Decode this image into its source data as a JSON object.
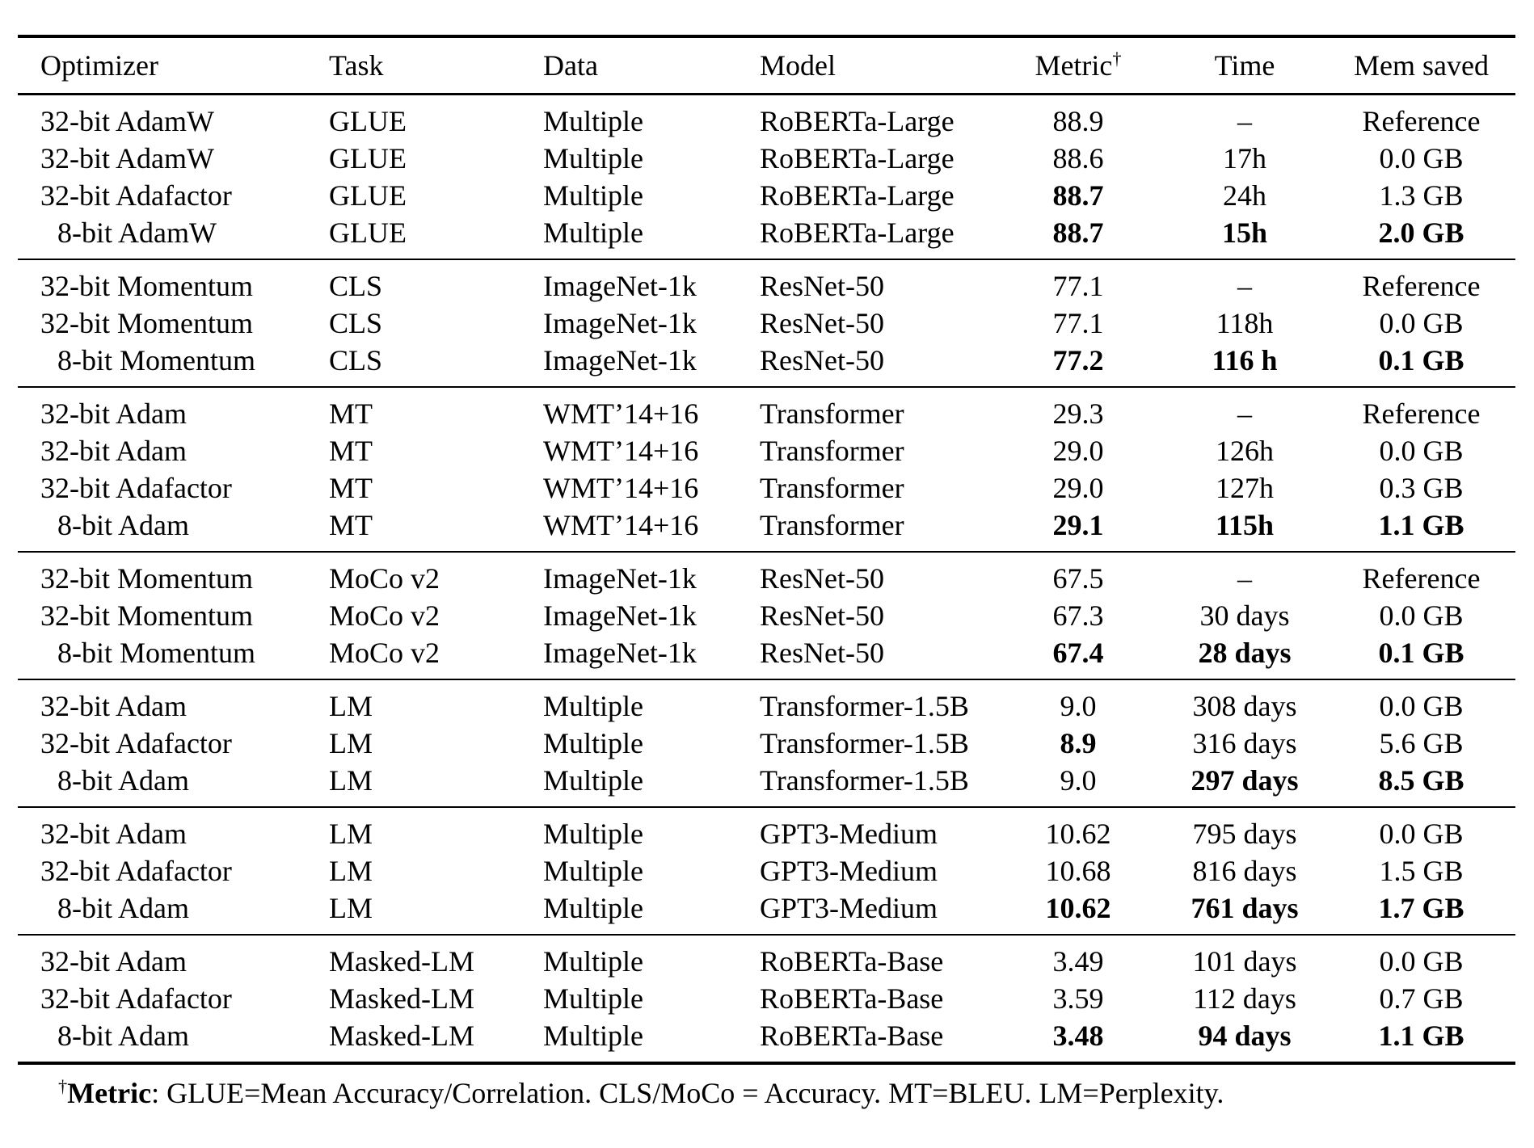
{
  "table": {
    "headers": [
      {
        "t": "Optimizer"
      },
      {
        "t": "Task"
      },
      {
        "t": "Data"
      },
      {
        "t": "Model"
      },
      {
        "t": "Metric",
        "sup": "†"
      },
      {
        "t": "Time"
      },
      {
        "t": "Mem saved"
      }
    ],
    "groups": [
      [
        [
          {
            "t": "32-bit AdamW"
          },
          {
            "t": "GLUE"
          },
          {
            "t": "Multiple"
          },
          {
            "t": "RoBERTa-Large"
          },
          {
            "t": "88.9"
          },
          {
            "t": "–"
          },
          {
            "t": "Reference"
          }
        ],
        [
          {
            "t": "32-bit AdamW"
          },
          {
            "t": "GLUE"
          },
          {
            "t": "Multiple"
          },
          {
            "t": "RoBERTa-Large"
          },
          {
            "t": "88.6"
          },
          {
            "t": "17h"
          },
          {
            "t": "0.0 GB"
          }
        ],
        [
          {
            "t": "32-bit Adafactor"
          },
          {
            "t": "GLUE"
          },
          {
            "t": "Multiple"
          },
          {
            "t": "RoBERTa-Large"
          },
          {
            "t": "88.7",
            "b": true
          },
          {
            "t": "24h"
          },
          {
            "t": "1.3 GB"
          }
        ],
        [
          {
            "t": "8-bit AdamW"
          },
          {
            "t": "GLUE"
          },
          {
            "t": "Multiple"
          },
          {
            "t": "RoBERTa-Large"
          },
          {
            "t": "88.7",
            "b": true
          },
          {
            "t": "15h",
            "b": true
          },
          {
            "t": "2.0 GB",
            "b": true
          }
        ]
      ],
      [
        [
          {
            "t": "32-bit Momentum"
          },
          {
            "t": "CLS"
          },
          {
            "t": "ImageNet-1k"
          },
          {
            "t": "ResNet-50"
          },
          {
            "t": "77.1"
          },
          {
            "t": "–"
          },
          {
            "t": "Reference"
          }
        ],
        [
          {
            "t": "32-bit Momentum"
          },
          {
            "t": "CLS"
          },
          {
            "t": "ImageNet-1k"
          },
          {
            "t": "ResNet-50"
          },
          {
            "t": "77.1"
          },
          {
            "t": "118h"
          },
          {
            "t": "0.0 GB"
          }
        ],
        [
          {
            "t": "8-bit Momentum"
          },
          {
            "t": "CLS"
          },
          {
            "t": "ImageNet-1k"
          },
          {
            "t": "ResNet-50"
          },
          {
            "t": "77.2",
            "b": true
          },
          {
            "t": "116 h",
            "b": true
          },
          {
            "t": "0.1 GB",
            "b": true
          }
        ]
      ],
      [
        [
          {
            "t": "32-bit Adam"
          },
          {
            "t": "MT"
          },
          {
            "t": "WMT’14+16"
          },
          {
            "t": "Transformer"
          },
          {
            "t": "29.3"
          },
          {
            "t": "–"
          },
          {
            "t": "Reference"
          }
        ],
        [
          {
            "t": "32-bit Adam"
          },
          {
            "t": "MT"
          },
          {
            "t": "WMT’14+16"
          },
          {
            "t": "Transformer"
          },
          {
            "t": "29.0"
          },
          {
            "t": "126h"
          },
          {
            "t": "0.0 GB"
          }
        ],
        [
          {
            "t": "32-bit Adafactor"
          },
          {
            "t": "MT"
          },
          {
            "t": "WMT’14+16"
          },
          {
            "t": "Transformer"
          },
          {
            "t": "29.0"
          },
          {
            "t": "127h"
          },
          {
            "t": "0.3 GB"
          }
        ],
        [
          {
            "t": "8-bit Adam"
          },
          {
            "t": "MT"
          },
          {
            "t": "WMT’14+16"
          },
          {
            "t": "Transformer"
          },
          {
            "t": "29.1",
            "b": true
          },
          {
            "t": "115h",
            "b": true
          },
          {
            "t": "1.1 GB",
            "b": true
          }
        ]
      ],
      [
        [
          {
            "t": "32-bit Momentum"
          },
          {
            "t": "MoCo v2"
          },
          {
            "t": "ImageNet-1k"
          },
          {
            "t": "ResNet-50"
          },
          {
            "t": "67.5"
          },
          {
            "t": "–"
          },
          {
            "t": "Reference"
          }
        ],
        [
          {
            "t": "32-bit Momentum"
          },
          {
            "t": "MoCo v2"
          },
          {
            "t": "ImageNet-1k"
          },
          {
            "t": "ResNet-50"
          },
          {
            "t": "67.3"
          },
          {
            "t": "30 days"
          },
          {
            "t": "0.0 GB"
          }
        ],
        [
          {
            "t": "8-bit Momentum"
          },
          {
            "t": "MoCo v2"
          },
          {
            "t": "ImageNet-1k"
          },
          {
            "t": "ResNet-50"
          },
          {
            "t": "67.4",
            "b": true
          },
          {
            "t": "28 days",
            "b": true
          },
          {
            "t": "0.1 GB",
            "b": true
          }
        ]
      ],
      [
        [
          {
            "t": "32-bit Adam"
          },
          {
            "t": "LM"
          },
          {
            "t": "Multiple"
          },
          {
            "t": "Transformer-1.5B"
          },
          {
            "t": "9.0"
          },
          {
            "t": "308 days"
          },
          {
            "t": "0.0 GB"
          }
        ],
        [
          {
            "t": "32-bit Adafactor"
          },
          {
            "t": "LM"
          },
          {
            "t": "Multiple"
          },
          {
            "t": "Transformer-1.5B"
          },
          {
            "t": "8.9",
            "b": true
          },
          {
            "t": "316 days"
          },
          {
            "t": "5.6 GB"
          }
        ],
        [
          {
            "t": "8-bit Adam"
          },
          {
            "t": "LM"
          },
          {
            "t": "Multiple"
          },
          {
            "t": "Transformer-1.5B"
          },
          {
            "t": "9.0"
          },
          {
            "t": "297 days",
            "b": true
          },
          {
            "t": "8.5 GB",
            "b": true
          }
        ]
      ],
      [
        [
          {
            "t": "32-bit Adam"
          },
          {
            "t": "LM"
          },
          {
            "t": "Multiple"
          },
          {
            "t": "GPT3-Medium"
          },
          {
            "t": "10.62"
          },
          {
            "t": "795 days"
          },
          {
            "t": "0.0 GB"
          }
        ],
        [
          {
            "t": "32-bit Adafactor"
          },
          {
            "t": "LM"
          },
          {
            "t": "Multiple"
          },
          {
            "t": "GPT3-Medium"
          },
          {
            "t": "10.68"
          },
          {
            "t": "816 days"
          },
          {
            "t": "1.5 GB"
          }
        ],
        [
          {
            "t": "8-bit Adam"
          },
          {
            "t": "LM"
          },
          {
            "t": "Multiple"
          },
          {
            "t": "GPT3-Medium"
          },
          {
            "t": "10.62",
            "b": true
          },
          {
            "t": "761 days",
            "b": true
          },
          {
            "t": "1.7 GB",
            "b": true
          }
        ]
      ],
      [
        [
          {
            "t": "32-bit Adam"
          },
          {
            "t": "Masked-LM"
          },
          {
            "t": "Multiple"
          },
          {
            "t": "RoBERTa-Base"
          },
          {
            "t": "3.49"
          },
          {
            "t": "101 days"
          },
          {
            "t": "0.0 GB"
          }
        ],
        [
          {
            "t": "32-bit Adafactor"
          },
          {
            "t": "Masked-LM"
          },
          {
            "t": "Multiple"
          },
          {
            "t": "RoBERTa-Base"
          },
          {
            "t": "3.59"
          },
          {
            "t": "112 days"
          },
          {
            "t": "0.7 GB"
          }
        ],
        [
          {
            "t": "8-bit Adam"
          },
          {
            "t": "Masked-LM"
          },
          {
            "t": "Multiple"
          },
          {
            "t": "RoBERTa-Base"
          },
          {
            "t": "3.48",
            "b": true
          },
          {
            "t": "94 days",
            "b": true
          },
          {
            "t": "1.1 GB",
            "b": true
          }
        ]
      ]
    ],
    "footnote": {
      "sup": "†",
      "bold": "Metric",
      "rest": ": GLUE=Mean Accuracy/Correlation. CLS/MoCo = Accuracy. MT=BLEU. LM=Perplexity."
    }
  }
}
